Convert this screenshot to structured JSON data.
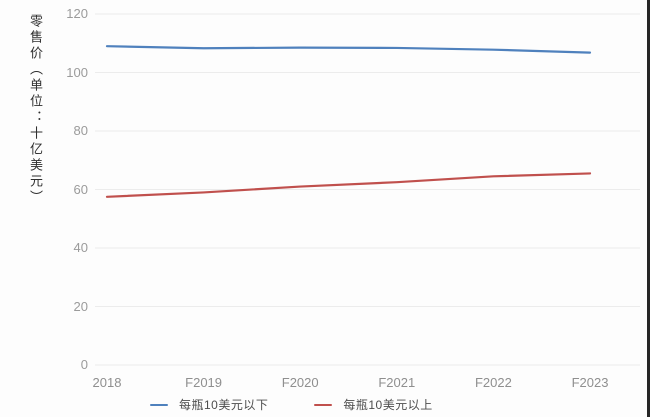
{
  "chart_data": {
    "type": "line",
    "title": "",
    "xlabel": "",
    "ylabel": "零售价（单位：十亿美元）",
    "categories": [
      "2018",
      "F2019",
      "F2020",
      "F2021",
      "F2022",
      "F2023"
    ],
    "series": [
      {
        "name": "每瓶10美元以下",
        "color": "#4f81bd",
        "values": [
          109,
          108.3,
          108.5,
          108.4,
          107.8,
          106.8
        ]
      },
      {
        "name": "每瓶10美元以上",
        "color": "#c0504d",
        "values": [
          57.5,
          59,
          61,
          62.5,
          64.5,
          65.5
        ]
      }
    ],
    "ylim": [
      0,
      120
    ],
    "yticks": [
      0,
      20,
      40,
      60,
      80,
      100,
      120
    ],
    "grid": true,
    "gridline_color": "#ececec",
    "legend_position": "bottom"
  }
}
